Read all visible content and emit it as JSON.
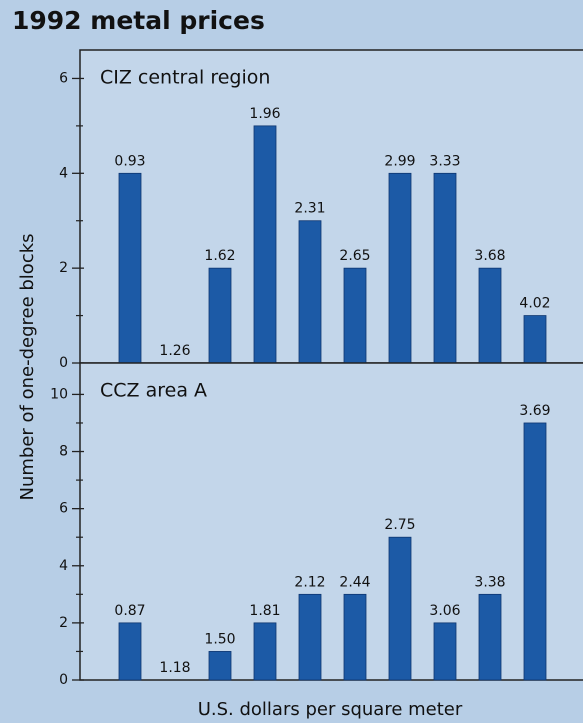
{
  "title": "1992 metal prices",
  "y_label": "Number of one-degree blocks",
  "x_label": "U.S. dollars per square meter",
  "chart_data": [
    {
      "type": "bar",
      "title": "CIZ central region",
      "categories": [
        "0.93",
        "1.26",
        "1.62",
        "1.96",
        "2.31",
        "2.65",
        "2.99",
        "3.33",
        "3.68",
        "4.02"
      ],
      "values": [
        4,
        0,
        2,
        5,
        3,
        2,
        4,
        4,
        2,
        1
      ],
      "color": "#1c5aa6",
      "ylim": [
        0,
        6.6
      ],
      "yticks": [
        0,
        2,
        4,
        6
      ],
      "minor_yticks": [
        1,
        3,
        5
      ]
    },
    {
      "type": "bar",
      "title": "CCZ area A",
      "categories": [
        "0.87",
        "1.18",
        "1.50",
        "1.81",
        "2.12",
        "2.44",
        "2.75",
        "3.06",
        "3.38",
        "3.69"
      ],
      "values": [
        2,
        0,
        1,
        2,
        3,
        3,
        5,
        2,
        3,
        9
      ],
      "color": "#1c5aa6",
      "ylim": [
        0,
        11.1
      ],
      "yticks": [
        0,
        2,
        4,
        6,
        8,
        10
      ],
      "minor_yticks": [
        1,
        3,
        5,
        7,
        9
      ]
    }
  ]
}
